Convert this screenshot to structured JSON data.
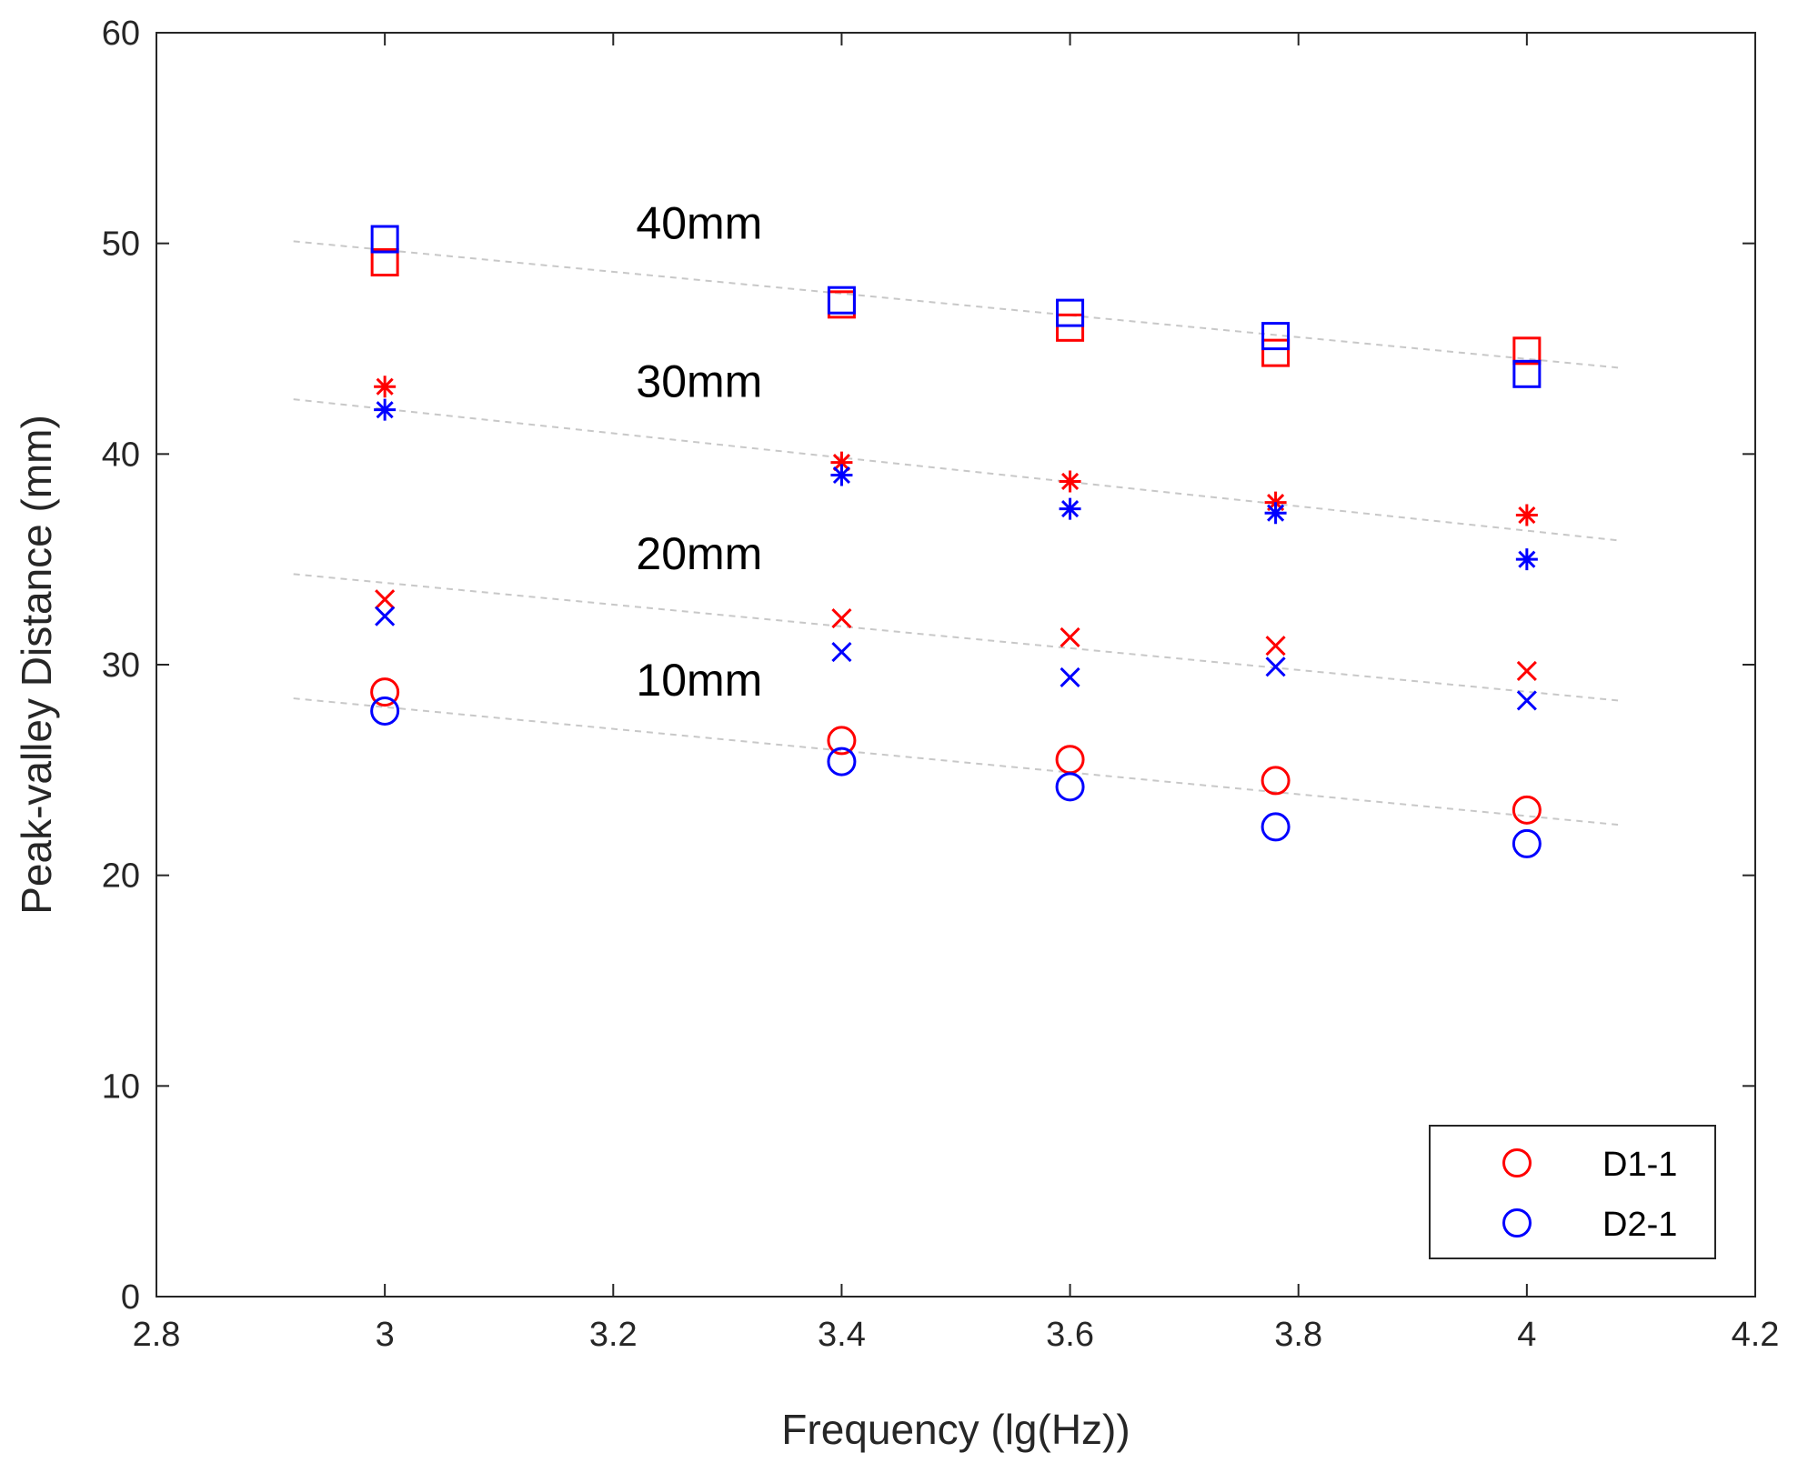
{
  "chart_data": {
    "type": "scatter",
    "title": "",
    "xlabel": "Frequency (lg(Hz))",
    "ylabel": "Peak-valley Distance (mm)",
    "xlim": [
      2.8,
      4.2
    ],
    "ylim": [
      0,
      60
    ],
    "x_ticks": [
      "2.8",
      "3",
      "3.2",
      "3.4",
      "3.6",
      "3.8",
      "4",
      "4.2"
    ],
    "y_ticks": [
      "0",
      "10",
      "20",
      "30",
      "40",
      "50",
      "60"
    ],
    "grid": false,
    "legend_position": "bottom-right",
    "colors": {
      "D1-1": "#ff0000",
      "D2-1": "#0000ff",
      "trend": "#c8c8c8"
    },
    "series": [
      {
        "name": "D1-1",
        "group": "10mm",
        "marker": "circle",
        "x": [
          3.0,
          3.4,
          3.6,
          3.78,
          4.0
        ],
        "y": [
          28.7,
          26.4,
          25.5,
          24.5,
          23.1
        ]
      },
      {
        "name": "D2-1",
        "group": "10mm",
        "marker": "circle",
        "x": [
          3.0,
          3.4,
          3.6,
          3.78,
          4.0
        ],
        "y": [
          27.8,
          25.4,
          24.2,
          22.3,
          21.5
        ]
      },
      {
        "name": "D1-1",
        "group": "20mm",
        "marker": "x",
        "x": [
          3.0,
          3.4,
          3.6,
          3.78,
          4.0
        ],
        "y": [
          33.1,
          32.2,
          31.3,
          30.9,
          29.7
        ]
      },
      {
        "name": "D2-1",
        "group": "20mm",
        "marker": "x",
        "x": [
          3.0,
          3.4,
          3.6,
          3.78,
          4.0
        ],
        "y": [
          32.3,
          30.6,
          29.4,
          29.9,
          28.3
        ]
      },
      {
        "name": "D1-1",
        "group": "30mm",
        "marker": "asterisk",
        "x": [
          3.0,
          3.4,
          3.6,
          3.78,
          4.0
        ],
        "y": [
          43.2,
          39.6,
          38.7,
          37.7,
          37.1
        ]
      },
      {
        "name": "D2-1",
        "group": "30mm",
        "marker": "asterisk",
        "x": [
          3.0,
          3.4,
          3.6,
          3.78,
          4.0
        ],
        "y": [
          42.1,
          39.0,
          37.4,
          37.2,
          35.0
        ]
      },
      {
        "name": "D1-1",
        "group": "40mm",
        "marker": "square",
        "x": [
          3.0,
          3.4,
          3.6,
          3.78,
          4.0
        ],
        "y": [
          49.1,
          47.1,
          46.0,
          44.8,
          44.9
        ]
      },
      {
        "name": "D2-1",
        "group": "40mm",
        "marker": "square",
        "x": [
          3.0,
          3.4,
          3.6,
          3.78,
          4.0
        ],
        "y": [
          50.2,
          47.3,
          46.7,
          45.6,
          43.8
        ]
      }
    ],
    "trend_lines": [
      {
        "group": "10mm",
        "x": [
          2.92,
          4.08
        ],
        "y": [
          28.4,
          22.4
        ]
      },
      {
        "group": "20mm",
        "x": [
          2.92,
          4.08
        ],
        "y": [
          34.3,
          28.3
        ]
      },
      {
        "group": "30mm",
        "x": [
          2.92,
          4.08
        ],
        "y": [
          42.6,
          35.9
        ]
      },
      {
        "group": "40mm",
        "x": [
          2.92,
          4.08
        ],
        "y": [
          50.1,
          44.1
        ]
      }
    ],
    "annotations": [
      {
        "text": "40mm",
        "x": 3.22,
        "y": 51.0
      },
      {
        "text": "30mm",
        "x": 3.22,
        "y": 43.5
      },
      {
        "text": "20mm",
        "x": 3.22,
        "y": 35.3
      },
      {
        "text": "10mm",
        "x": 3.22,
        "y": 29.3
      }
    ],
    "legend": [
      {
        "label": "D1-1",
        "color": "#ff0000",
        "marker": "circle"
      },
      {
        "label": "D2-1",
        "color": "#0000ff",
        "marker": "circle"
      }
    ]
  }
}
